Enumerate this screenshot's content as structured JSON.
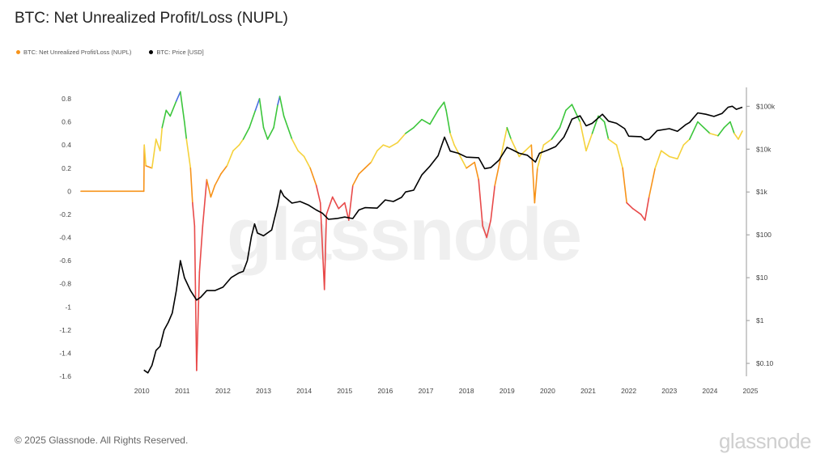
{
  "title": "BTC: Net Unrealized Profit/Loss (NUPL)",
  "legend": [
    {
      "label": "BTC: Net Unrealized Profit/Loss (NUPL)",
      "color": "#f7931a"
    },
    {
      "label": "BTC: Price [USD]",
      "color": "#000000"
    }
  ],
  "watermark": "glassnode",
  "footer": "© 2025 Glassnode. All Rights Reserved.",
  "brand": "glassnode",
  "chart_data": {
    "type": "line",
    "title": "BTC: Net Unrealized Profit/Loss (NUPL)",
    "x_ticks": [
      "2010",
      "2011",
      "2012",
      "2013",
      "2014",
      "2015",
      "2016",
      "2017",
      "2018",
      "2019",
      "2020",
      "2021",
      "2022",
      "2023",
      "2024",
      "2025"
    ],
    "y_left_ticks": [
      "0.8",
      "0.6",
      "0.4",
      "0.2",
      "0",
      "-0.2",
      "-0.4",
      "-0.6",
      "-0.8",
      "-1",
      "-1.2",
      "-1.4",
      "-1.6"
    ],
    "y_right_ticks": [
      "$100k",
      "$10k",
      "$1k",
      "$100",
      "$10",
      "$1",
      "$0.10"
    ],
    "y_left_range": [
      -1.6,
      0.8
    ],
    "y_right_scale": "log",
    "y_right_range": [
      0.05,
      150000
    ],
    "x_range": [
      2009.0,
      2025.4
    ],
    "nupl_color_bands": [
      {
        "min": -2,
        "max": 0,
        "color": "#e84a4a"
      },
      {
        "min": 0,
        "max": 0.25,
        "color": "#f7931a"
      },
      {
        "min": 0.25,
        "max": 0.5,
        "color": "#f5d23c"
      },
      {
        "min": 0.5,
        "max": 0.75,
        "color": "#3cc63c"
      },
      {
        "min": 0.75,
        "max": 2,
        "color": "#4a6ee0"
      }
    ],
    "series": [
      {
        "name": "BTC: Net Unrealized Profit/Loss (NUPL)",
        "points": [
          [
            2009.0,
            0
          ],
          [
            2010.55,
            0
          ],
          [
            2010.56,
            0.4
          ],
          [
            2010.6,
            0.22
          ],
          [
            2010.75,
            0.2
          ],
          [
            2010.85,
            0.45
          ],
          [
            2010.95,
            0.35
          ],
          [
            2011.0,
            0.55
          ],
          [
            2011.1,
            0.7
          ],
          [
            2011.2,
            0.65
          ],
          [
            2011.35,
            0.78
          ],
          [
            2011.45,
            0.86
          ],
          [
            2011.55,
            0.6
          ],
          [
            2011.6,
            0.45
          ],
          [
            2011.7,
            0.2
          ],
          [
            2011.75,
            -0.1
          ],
          [
            2011.8,
            -0.3
          ],
          [
            2011.85,
            -1.55
          ],
          [
            2011.92,
            -0.7
          ],
          [
            2012.0,
            -0.3
          ],
          [
            2012.1,
            0.1
          ],
          [
            2012.2,
            -0.05
          ],
          [
            2012.3,
            0.05
          ],
          [
            2012.45,
            0.15
          ],
          [
            2012.6,
            0.22
          ],
          [
            2012.75,
            0.35
          ],
          [
            2012.9,
            0.4
          ],
          [
            2013.0,
            0.45
          ],
          [
            2013.15,
            0.55
          ],
          [
            2013.3,
            0.7
          ],
          [
            2013.4,
            0.8
          ],
          [
            2013.5,
            0.55
          ],
          [
            2013.6,
            0.45
          ],
          [
            2013.75,
            0.55
          ],
          [
            2013.85,
            0.75
          ],
          [
            2013.9,
            0.82
          ],
          [
            2014.0,
            0.65
          ],
          [
            2014.1,
            0.55
          ],
          [
            2014.2,
            0.45
          ],
          [
            2014.35,
            0.35
          ],
          [
            2014.5,
            0.3
          ],
          [
            2014.65,
            0.2
          ],
          [
            2014.8,
            0.05
          ],
          [
            2014.9,
            -0.1
          ],
          [
            2015.0,
            -0.85
          ],
          [
            2015.05,
            -0.2
          ],
          [
            2015.2,
            -0.05
          ],
          [
            2015.35,
            -0.15
          ],
          [
            2015.5,
            -0.1
          ],
          [
            2015.6,
            -0.25
          ],
          [
            2015.7,
            0.05
          ],
          [
            2015.85,
            0.15
          ],
          [
            2016.0,
            0.2
          ],
          [
            2016.15,
            0.25
          ],
          [
            2016.3,
            0.35
          ],
          [
            2016.45,
            0.4
          ],
          [
            2016.6,
            0.38
          ],
          [
            2016.8,
            0.42
          ],
          [
            2017.0,
            0.5
          ],
          [
            2017.2,
            0.55
          ],
          [
            2017.4,
            0.62
          ],
          [
            2017.6,
            0.58
          ],
          [
            2017.8,
            0.7
          ],
          [
            2017.95,
            0.77
          ],
          [
            2018.0,
            0.7
          ],
          [
            2018.1,
            0.5
          ],
          [
            2018.2,
            0.4
          ],
          [
            2018.35,
            0.3
          ],
          [
            2018.5,
            0.2
          ],
          [
            2018.7,
            0.25
          ],
          [
            2018.8,
            0.1
          ],
          [
            2018.9,
            -0.3
          ],
          [
            2019.0,
            -0.4
          ],
          [
            2019.1,
            -0.25
          ],
          [
            2019.2,
            0.05
          ],
          [
            2019.35,
            0.3
          ],
          [
            2019.5,
            0.55
          ],
          [
            2019.6,
            0.45
          ],
          [
            2019.8,
            0.3
          ],
          [
            2019.95,
            0.35
          ],
          [
            2020.1,
            0.4
          ],
          [
            2020.18,
            -0.1
          ],
          [
            2020.25,
            0.2
          ],
          [
            2020.4,
            0.4
          ],
          [
            2020.6,
            0.45
          ],
          [
            2020.8,
            0.55
          ],
          [
            2020.95,
            0.7
          ],
          [
            2021.1,
            0.75
          ],
          [
            2021.3,
            0.6
          ],
          [
            2021.45,
            0.35
          ],
          [
            2021.6,
            0.5
          ],
          [
            2021.75,
            0.65
          ],
          [
            2021.9,
            0.6
          ],
          [
            2022.0,
            0.45
          ],
          [
            2022.2,
            0.4
          ],
          [
            2022.35,
            0.2
          ],
          [
            2022.45,
            -0.1
          ],
          [
            2022.6,
            -0.15
          ],
          [
            2022.8,
            -0.2
          ],
          [
            2022.9,
            -0.25
          ],
          [
            2023.0,
            -0.05
          ],
          [
            2023.15,
            0.2
          ],
          [
            2023.3,
            0.35
          ],
          [
            2023.5,
            0.3
          ],
          [
            2023.7,
            0.28
          ],
          [
            2023.85,
            0.4
          ],
          [
            2024.0,
            0.45
          ],
          [
            2024.2,
            0.6
          ],
          [
            2024.35,
            0.55
          ],
          [
            2024.5,
            0.5
          ],
          [
            2024.7,
            0.48
          ],
          [
            2024.85,
            0.55
          ],
          [
            2025.0,
            0.6
          ],
          [
            2025.1,
            0.5
          ],
          [
            2025.2,
            0.45
          ],
          [
            2025.3,
            0.52
          ]
        ]
      },
      {
        "name": "BTC: Price [USD]",
        "points": [
          [
            2010.55,
            0.07
          ],
          [
            2010.65,
            0.06
          ],
          [
            2010.75,
            0.09
          ],
          [
            2010.85,
            0.2
          ],
          [
            2010.95,
            0.25
          ],
          [
            2011.05,
            0.6
          ],
          [
            2011.15,
            0.9
          ],
          [
            2011.25,
            1.5
          ],
          [
            2011.35,
            5
          ],
          [
            2011.42,
            15
          ],
          [
            2011.45,
            25
          ],
          [
            2011.55,
            10
          ],
          [
            2011.7,
            5
          ],
          [
            2011.85,
            3
          ],
          [
            2011.95,
            3.5
          ],
          [
            2012.1,
            5
          ],
          [
            2012.3,
            5
          ],
          [
            2012.5,
            6
          ],
          [
            2012.7,
            10
          ],
          [
            2012.9,
            13
          ],
          [
            2013.0,
            14
          ],
          [
            2013.1,
            25
          ],
          [
            2013.2,
            90
          ],
          [
            2013.28,
            180
          ],
          [
            2013.35,
            110
          ],
          [
            2013.5,
            95
          ],
          [
            2013.7,
            130
          ],
          [
            2013.85,
            500
          ],
          [
            2013.92,
            1100
          ],
          [
            2014.0,
            800
          ],
          [
            2014.2,
            550
          ],
          [
            2014.4,
            600
          ],
          [
            2014.6,
            500
          ],
          [
            2014.8,
            380
          ],
          [
            2014.95,
            320
          ],
          [
            2015.1,
            230
          ],
          [
            2015.3,
            240
          ],
          [
            2015.5,
            260
          ],
          [
            2015.7,
            240
          ],
          [
            2015.85,
            380
          ],
          [
            2016.0,
            430
          ],
          [
            2016.3,
            420
          ],
          [
            2016.5,
            650
          ],
          [
            2016.7,
            600
          ],
          [
            2016.9,
            750
          ],
          [
            2017.0,
            1000
          ],
          [
            2017.2,
            1100
          ],
          [
            2017.4,
            2500
          ],
          [
            2017.6,
            4000
          ],
          [
            2017.8,
            7000
          ],
          [
            2017.96,
            19000
          ],
          [
            2018.1,
            9000
          ],
          [
            2018.3,
            8000
          ],
          [
            2018.5,
            6500
          ],
          [
            2018.8,
            6300
          ],
          [
            2018.95,
            3500
          ],
          [
            2019.1,
            3700
          ],
          [
            2019.3,
            5500
          ],
          [
            2019.5,
            11000
          ],
          [
            2019.6,
            10000
          ],
          [
            2019.8,
            8000
          ],
          [
            2020.0,
            7200
          ],
          [
            2020.2,
            5000
          ],
          [
            2020.3,
            8000
          ],
          [
            2020.5,
            9500
          ],
          [
            2020.7,
            11500
          ],
          [
            2020.9,
            19000
          ],
          [
            2021.0,
            30000
          ],
          [
            2021.1,
            50000
          ],
          [
            2021.3,
            60000
          ],
          [
            2021.45,
            35000
          ],
          [
            2021.6,
            40000
          ],
          [
            2021.85,
            65000
          ],
          [
            2022.0,
            45000
          ],
          [
            2022.2,
            40000
          ],
          [
            2022.4,
            30000
          ],
          [
            2022.5,
            20000
          ],
          [
            2022.8,
            19500
          ],
          [
            2022.9,
            16500
          ],
          [
            2023.0,
            17000
          ],
          [
            2023.2,
            27000
          ],
          [
            2023.5,
            30000
          ],
          [
            2023.7,
            26000
          ],
          [
            2023.9,
            37000
          ],
          [
            2024.0,
            42000
          ],
          [
            2024.2,
            70000
          ],
          [
            2024.4,
            65000
          ],
          [
            2024.6,
            58000
          ],
          [
            2024.8,
            68000
          ],
          [
            2024.95,
            95000
          ],
          [
            2025.05,
            100000
          ],
          [
            2025.15,
            85000
          ],
          [
            2025.3,
            95000
          ]
        ]
      }
    ],
    "grid": false,
    "legend_position": "top-left"
  }
}
